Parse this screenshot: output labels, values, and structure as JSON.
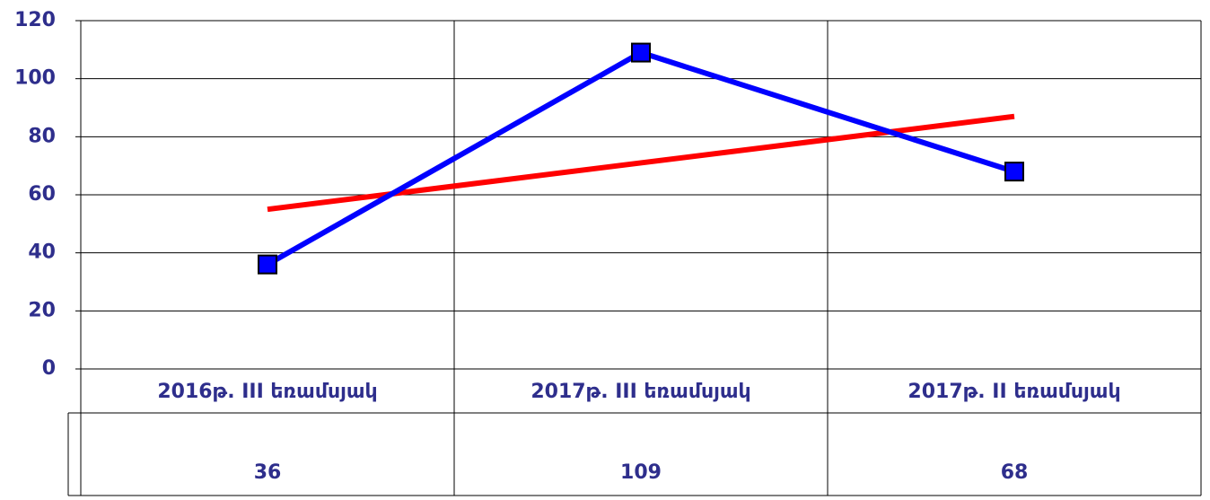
{
  "chart_data": {
    "type": "line",
    "categories": [
      "2016թ. III եռամսյակ",
      "2017թ. III եռամսյակ",
      "2017թ. II եռամսյակ"
    ],
    "series": [
      {
        "color": "#0000ff",
        "values": [
          36,
          109,
          68
        ]
      },
      {
        "color": "#ff0000",
        "values": [
          55,
          71,
          87
        ]
      }
    ],
    "ylim": [
      0,
      120
    ],
    "yticks": [
      0,
      20,
      40,
      60,
      80,
      100,
      120
    ],
    "grid": true
  }
}
